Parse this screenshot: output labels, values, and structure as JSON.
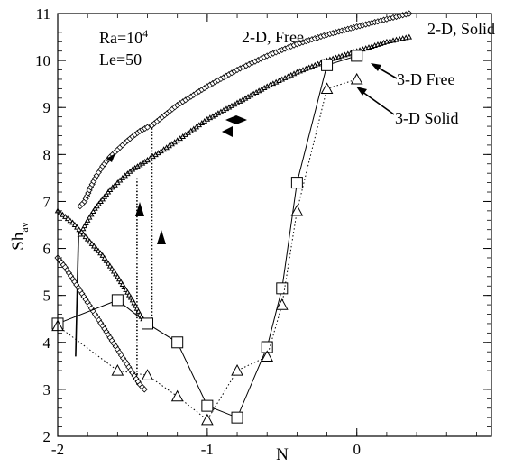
{
  "chart_data": {
    "type": "line",
    "xlabel": "N",
    "ylabel": "Sh",
    "ylabel_sub": "av",
    "xlim": [
      -2,
      0.9
    ],
    "ylim": [
      2,
      11
    ],
    "xticks": [
      -2,
      -1,
      0
    ],
    "yticks": [
      2,
      3,
      4,
      5,
      6,
      7,
      8,
      9,
      10,
      11
    ],
    "minor_x_step": 0.2,
    "minor_y_step": 0.2,
    "params": {
      "ra_label": "Ra=10",
      "ra_exp": "4",
      "le_label": "Le=50"
    },
    "series": [
      {
        "name": "2-D, Free",
        "marker": "diamond",
        "dense": true,
        "line": "solid",
        "branches": [
          {
            "x": [
              -2.0,
              -1.95,
              -1.9,
              -1.85,
              -1.8,
              -1.75,
              -1.7,
              -1.65,
              -1.6,
              -1.55,
              -1.5,
              -1.45,
              -1.42
            ],
            "y": [
              5.8,
              5.6,
              5.35,
              5.1,
              4.85,
              4.6,
              4.35,
              4.1,
              3.85,
              3.6,
              3.35,
              3.1,
              3.0
            ]
          },
          {
            "x": [
              -1.85,
              -1.82,
              -1.78,
              -1.74,
              -1.7,
              -1.65,
              -1.6,
              -1.55,
              -1.5,
              -1.45,
              -1.4,
              -1.37
            ],
            "y": [
              6.9,
              7.0,
              7.3,
              7.55,
              7.75,
              7.95,
              8.1,
              8.25,
              8.38,
              8.5,
              8.58,
              8.62
            ]
          },
          {
            "x": [
              -1.37,
              -1.2,
              -1.0,
              -0.8,
              -0.6,
              -0.4,
              -0.2,
              0.0,
              0.2,
              0.35
            ],
            "y": [
              8.62,
              9.05,
              9.45,
              9.8,
              10.1,
              10.35,
              10.55,
              10.72,
              10.88,
              11.0
            ]
          }
        ]
      },
      {
        "name": "2-D, Solid",
        "marker": "triangle-small",
        "dense": true,
        "line": "solid",
        "branches": [
          {
            "x": [
              -2.0,
              -1.9,
              -1.8,
              -1.7,
              -1.6,
              -1.5,
              -1.45,
              -1.42
            ],
            "y": [
              6.8,
              6.55,
              6.2,
              5.85,
              5.4,
              4.9,
              4.6,
              4.45
            ]
          },
          {
            "x": [
              -1.85,
              -1.8,
              -1.75,
              -1.7,
              -1.65,
              -1.6,
              -1.55,
              -1.5,
              -1.45,
              -1.4
            ],
            "y": [
              6.3,
              6.6,
              6.85,
              7.05,
              7.25,
              7.4,
              7.55,
              7.68,
              7.78,
              7.88
            ]
          },
          {
            "x": [
              -1.4,
              -1.2,
              -1.0,
              -0.8,
              -0.6,
              -0.4,
              -0.2,
              0.0,
              0.2,
              0.35
            ],
            "y": [
              7.88,
              8.3,
              8.75,
              9.1,
              9.45,
              9.75,
              10.0,
              10.2,
              10.4,
              10.5
            ]
          }
        ]
      },
      {
        "name": "3-D Free",
        "marker": "square",
        "dense": false,
        "line": "solid",
        "branches": [
          {
            "x": [
              -2.0,
              -1.6,
              -1.4,
              -1.2,
              -1.0,
              -0.8,
              -0.6,
              -0.5,
              -0.4,
              -0.2,
              0.0
            ],
            "y": [
              4.4,
              4.9,
              4.4,
              4.0,
              2.65,
              2.4,
              3.9,
              5.15,
              7.4,
              9.9,
              10.1
            ]
          }
        ]
      },
      {
        "name": "3-D Solid",
        "marker": "triangle",
        "dense": false,
        "line": "dotted",
        "branches": [
          {
            "x": [
              -2.0,
              -1.6,
              -1.4,
              -1.2,
              -1.0,
              -0.8,
              -0.6,
              -0.5,
              -0.4,
              -0.2,
              0.0
            ],
            "y": [
              4.35,
              3.4,
              3.3,
              2.85,
              2.35,
              3.4,
              3.7,
              4.8,
              6.8,
              9.4,
              9.6
            ]
          }
        ]
      }
    ],
    "jumps": [
      {
        "x": [
          -1.37,
          -1.37
        ],
        "y": [
          4.5,
          8.62
        ],
        "line": "dotted"
      },
      {
        "x": [
          -1.47,
          -1.47
        ],
        "y": [
          3.1,
          7.5
        ],
        "line": "dotted"
      },
      {
        "x": [
          -1.88,
          -1.86
        ],
        "y": [
          3.7,
          6.4
        ],
        "line": "solid"
      }
    ],
    "labels": [
      {
        "text": "2-D, Free",
        "series": "2-D, Free"
      },
      {
        "text": "2-D, Solid",
        "series": "2-D, Solid"
      },
      {
        "text": "3-D Free",
        "series": "3-D Free"
      },
      {
        "text": "3-D Solid",
        "series": "3-D Solid"
      }
    ]
  }
}
